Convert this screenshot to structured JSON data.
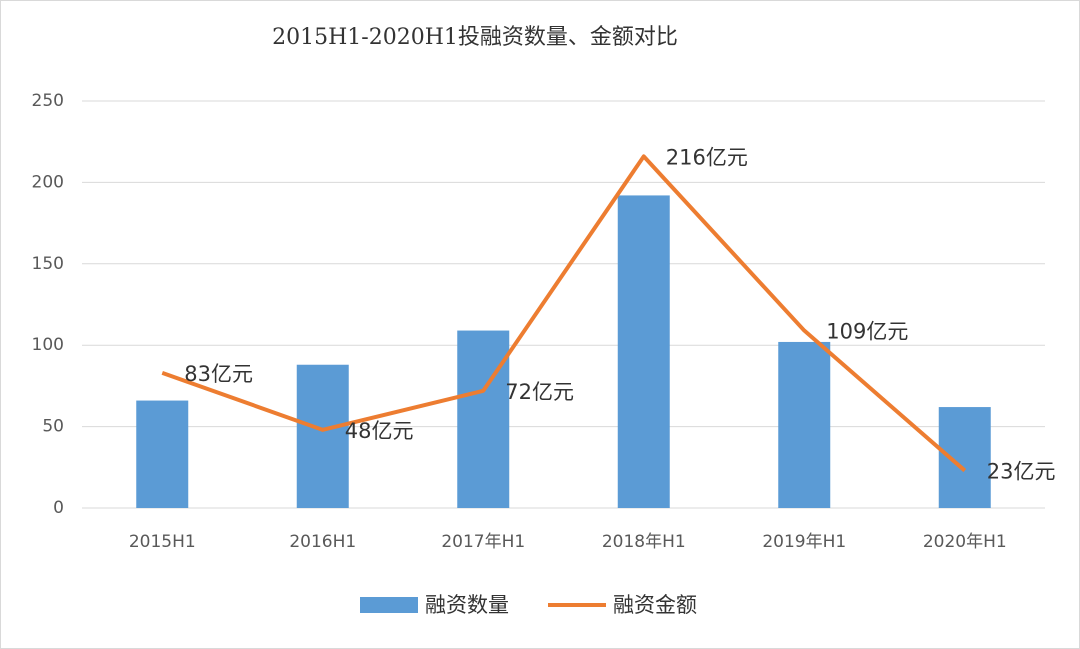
{
  "chart_data": {
    "type": "bar",
    "title": "2015H1-2020H1投融资数量、金额对比",
    "categories": [
      "2015H1",
      "2016H1",
      "2017年H1",
      "2018年H1",
      "2019年H1",
      "2020年H1"
    ],
    "series": [
      {
        "name": "融资数量",
        "type": "bar",
        "color": "#5b9bd5",
        "values": [
          66,
          88,
          109,
          192,
          102,
          62
        ]
      },
      {
        "name": "融资金额",
        "type": "line",
        "color": "#ed7d31",
        "values": [
          83,
          48,
          72,
          216,
          109,
          23
        ],
        "value_labels": [
          "83亿元",
          "48亿元",
          "72亿元",
          "216亿元",
          "109亿元",
          "23亿元"
        ]
      }
    ],
    "ylim": [
      0,
      250
    ],
    "yticks": [
      0,
      50,
      100,
      150,
      200,
      250
    ],
    "grid": true,
    "legend": "bottom"
  }
}
